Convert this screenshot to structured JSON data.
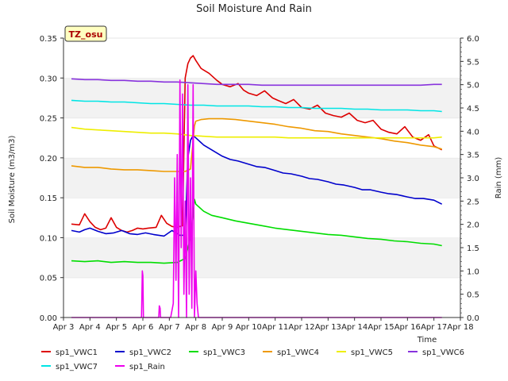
{
  "chart_data": {
    "type": "line",
    "title": "Soil Moisture And Rain",
    "xlabel": "Time",
    "ylabel": "Soil Moisture (m3/m3)",
    "y2label": "Rain (mm)",
    "site_label": "TZ_osu",
    "x_ticks": [
      "Apr 3",
      "Apr 4",
      "Apr 5",
      "Apr 6",
      "Apr 7",
      "Apr 8",
      "Apr 9",
      "Apr 10",
      "Apr 11",
      "Apr 12",
      "Apr 13",
      "Apr 14",
      "Apr 15",
      "Apr 16",
      "Apr 17",
      "Apr 18"
    ],
    "xlim": [
      3,
      18
    ],
    "ylim": [
      0,
      0.35
    ],
    "y_ticks": [
      "0.00",
      "0.05",
      "0.10",
      "0.15",
      "0.20",
      "0.25",
      "0.30",
      "0.35"
    ],
    "y2lim": [
      0,
      6.0
    ],
    "y2_ticks": [
      "0.0",
      "0.5",
      "1.0",
      "1.5",
      "2.0",
      "2.5",
      "3.0",
      "3.5",
      "4.0",
      "4.5",
      "5.0",
      "5.5",
      "6.0"
    ],
    "grid": "horizontal bands",
    "legend_position": "bottom",
    "series": [
      {
        "name": "sp1_VWC1",
        "color": "#dd0000",
        "axis": "left",
        "x": [
          3.3,
          3.6,
          3.8,
          4.0,
          4.2,
          4.4,
          4.6,
          4.8,
          5.0,
          5.2,
          5.4,
          5.6,
          5.8,
          6.0,
          6.2,
          6.5,
          6.7,
          6.9,
          7.1,
          7.3,
          7.5,
          7.6,
          7.7,
          7.8,
          7.9,
          8.0,
          8.2,
          8.5,
          8.8,
          9.0,
          9.3,
          9.6,
          9.8,
          10.0,
          10.3,
          10.6,
          10.9,
          11.1,
          11.4,
          11.7,
          12.0,
          12.3,
          12.6,
          12.9,
          13.2,
          13.5,
          13.8,
          14.1,
          14.4,
          14.7,
          15.0,
          15.3,
          15.6,
          15.9,
          16.2,
          16.5,
          16.8,
          17.0,
          17.3
        ],
        "y": [
          0.117,
          0.116,
          0.13,
          0.12,
          0.113,
          0.11,
          0.112,
          0.125,
          0.113,
          0.109,
          0.107,
          0.109,
          0.112,
          0.111,
          0.112,
          0.113,
          0.128,
          0.118,
          0.114,
          0.113,
          0.115,
          0.3,
          0.318,
          0.325,
          0.328,
          0.322,
          0.312,
          0.306,
          0.297,
          0.292,
          0.289,
          0.293,
          0.285,
          0.281,
          0.278,
          0.284,
          0.275,
          0.272,
          0.268,
          0.273,
          0.263,
          0.261,
          0.266,
          0.256,
          0.253,
          0.251,
          0.256,
          0.247,
          0.244,
          0.247,
          0.236,
          0.232,
          0.23,
          0.239,
          0.226,
          0.222,
          0.229,
          0.215,
          0.21
        ]
      },
      {
        "name": "sp1_VWC2",
        "color": "#0000cc",
        "axis": "left",
        "x": [
          3.3,
          3.6,
          3.8,
          4.0,
          4.3,
          4.6,
          4.9,
          5.2,
          5.5,
          5.8,
          6.1,
          6.4,
          6.8,
          7.1,
          7.4,
          7.6,
          7.7,
          7.8,
          7.9,
          8.0,
          8.3,
          8.6,
          9.0,
          9.3,
          9.6,
          10.0,
          10.3,
          10.6,
          11.0,
          11.3,
          11.6,
          12.0,
          12.3,
          12.6,
          13.0,
          13.3,
          13.6,
          14.0,
          14.3,
          14.6,
          15.0,
          15.3,
          15.6,
          16.0,
          16.3,
          16.6,
          17.0,
          17.3
        ],
        "y": [
          0.109,
          0.107,
          0.11,
          0.112,
          0.108,
          0.105,
          0.106,
          0.109,
          0.105,
          0.104,
          0.106,
          0.104,
          0.102,
          0.109,
          0.103,
          0.103,
          0.2,
          0.222,
          0.228,
          0.225,
          0.216,
          0.21,
          0.202,
          0.198,
          0.196,
          0.192,
          0.189,
          0.188,
          0.184,
          0.181,
          0.18,
          0.177,
          0.174,
          0.173,
          0.17,
          0.167,
          0.166,
          0.163,
          0.16,
          0.16,
          0.157,
          0.155,
          0.154,
          0.151,
          0.149,
          0.149,
          0.147,
          0.142
        ]
      },
      {
        "name": "sp1_VWC3",
        "color": "#00dd00",
        "axis": "left",
        "x": [
          3.3,
          3.8,
          4.3,
          4.8,
          5.3,
          5.8,
          6.3,
          6.8,
          7.3,
          7.6,
          7.8,
          7.95,
          8.0,
          8.3,
          8.6,
          9.0,
          9.5,
          10.0,
          10.5,
          11.0,
          11.5,
          12.0,
          12.5,
          13.0,
          13.5,
          14.0,
          14.5,
          15.0,
          15.5,
          16.0,
          16.5,
          17.0,
          17.3
        ],
        "y": [
          0.071,
          0.07,
          0.071,
          0.069,
          0.07,
          0.069,
          0.069,
          0.068,
          0.069,
          0.074,
          0.1,
          0.148,
          0.142,
          0.133,
          0.128,
          0.125,
          0.121,
          0.118,
          0.115,
          0.112,
          0.11,
          0.108,
          0.106,
          0.104,
          0.103,
          0.101,
          0.099,
          0.098,
          0.096,
          0.095,
          0.093,
          0.092,
          0.09
        ]
      },
      {
        "name": "sp1_VWC4",
        "color": "#ee9900",
        "axis": "left",
        "x": [
          3.3,
          3.8,
          4.3,
          4.8,
          5.3,
          5.8,
          6.3,
          6.8,
          7.3,
          7.6,
          7.8,
          7.95,
          8.0,
          8.2,
          8.5,
          9.0,
          9.5,
          10.0,
          10.5,
          11.0,
          11.5,
          12.0,
          12.5,
          13.0,
          13.5,
          14.0,
          14.5,
          15.0,
          15.5,
          16.0,
          16.5,
          17.0,
          17.3
        ],
        "y": [
          0.19,
          0.188,
          0.188,
          0.186,
          0.185,
          0.185,
          0.184,
          0.183,
          0.183,
          0.183,
          0.186,
          0.24,
          0.246,
          0.248,
          0.249,
          0.249,
          0.248,
          0.246,
          0.244,
          0.242,
          0.239,
          0.237,
          0.234,
          0.233,
          0.23,
          0.228,
          0.226,
          0.224,
          0.221,
          0.219,
          0.216,
          0.214,
          0.211
        ]
      },
      {
        "name": "sp1_VWC5",
        "color": "#eeee00",
        "axis": "left",
        "x": [
          3.3,
          3.8,
          4.3,
          4.8,
          5.3,
          5.8,
          6.3,
          6.8,
          7.3,
          7.8,
          8.3,
          8.8,
          9.3,
          10.0,
          10.5,
          11.0,
          11.5,
          12.0,
          12.5,
          13.0,
          13.5,
          14.0,
          14.5,
          15.0,
          15.5,
          16.0,
          16.5,
          17.0,
          17.3
        ],
        "y": [
          0.238,
          0.236,
          0.235,
          0.234,
          0.233,
          0.232,
          0.231,
          0.231,
          0.23,
          0.228,
          0.227,
          0.226,
          0.226,
          0.226,
          0.226,
          0.226,
          0.225,
          0.225,
          0.225,
          0.225,
          0.225,
          0.225,
          0.225,
          0.225,
          0.225,
          0.225,
          0.225,
          0.225,
          0.226
        ]
      },
      {
        "name": "sp1_VWC6",
        "color": "#8833dd",
        "axis": "left",
        "x": [
          3.3,
          3.8,
          4.3,
          4.8,
          5.3,
          5.8,
          6.3,
          6.8,
          7.3,
          7.8,
          8.3,
          8.8,
          9.3,
          10.0,
          10.5,
          11.0,
          11.5,
          12.0,
          12.5,
          13.0,
          13.5,
          14.0,
          14.5,
          15.0,
          15.5,
          16.0,
          16.5,
          17.0,
          17.3
        ],
        "y": [
          0.299,
          0.298,
          0.298,
          0.297,
          0.297,
          0.296,
          0.296,
          0.295,
          0.295,
          0.294,
          0.293,
          0.292,
          0.292,
          0.292,
          0.291,
          0.291,
          0.291,
          0.291,
          0.291,
          0.291,
          0.291,
          0.291,
          0.291,
          0.291,
          0.291,
          0.291,
          0.291,
          0.292,
          0.292
        ]
      },
      {
        "name": "sp1_VWC7",
        "color": "#00e5e5",
        "axis": "left",
        "x": [
          3.3,
          3.8,
          4.3,
          4.8,
          5.3,
          5.8,
          6.3,
          6.8,
          7.3,
          7.8,
          8.3,
          8.8,
          9.3,
          10.0,
          10.5,
          11.0,
          11.5,
          12.0,
          12.5,
          13.0,
          13.5,
          14.0,
          14.5,
          15.0,
          15.5,
          16.0,
          16.5,
          17.0,
          17.3
        ],
        "y": [
          0.272,
          0.271,
          0.271,
          0.27,
          0.27,
          0.269,
          0.268,
          0.268,
          0.267,
          0.266,
          0.266,
          0.265,
          0.265,
          0.265,
          0.264,
          0.264,
          0.263,
          0.263,
          0.262,
          0.262,
          0.262,
          0.261,
          0.261,
          0.26,
          0.26,
          0.26,
          0.259,
          0.259,
          0.258
        ]
      },
      {
        "name": "sp1_Rain",
        "color": "#ee00ee",
        "axis": "right",
        "x": [
          3.3,
          5.95,
          5.98,
          6.0,
          6.02,
          6.05,
          6.6,
          6.62,
          6.65,
          6.67,
          6.7,
          7.05,
          7.15,
          7.2,
          7.25,
          7.3,
          7.35,
          7.4,
          7.45,
          7.5,
          7.55,
          7.6,
          7.65,
          7.7,
          7.75,
          7.8,
          7.85,
          7.9,
          7.95,
          8.0,
          8.05,
          8.1,
          8.15,
          17.3
        ],
        "y": [
          0,
          0,
          1.0,
          0.9,
          0,
          0,
          0,
          0.25,
          0.2,
          0,
          0,
          0,
          0.3,
          3.0,
          0.8,
          3.5,
          0,
          5.1,
          1.5,
          4.8,
          0.5,
          2.5,
          0,
          5.0,
          0.5,
          3.0,
          0.2,
          5.0,
          0,
          1.0,
          0.3,
          0,
          0,
          0
        ]
      }
    ]
  }
}
